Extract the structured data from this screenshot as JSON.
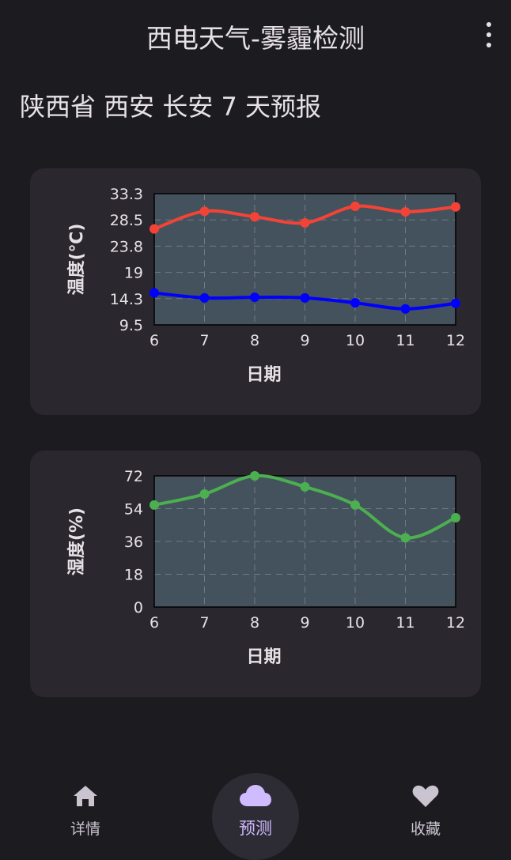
{
  "appbar": {
    "title": "西电天气-雾霾检测",
    "menu_icon": "more-vert-icon"
  },
  "heading": "陕西省 西安 长安 7 天预报",
  "chart_data": [
    {
      "type": "line",
      "ylabel": "温度(℃)",
      "xlabel": "日期",
      "x": [
        6,
        7,
        8,
        9,
        10,
        11,
        12
      ],
      "yticks": [
        "33.3",
        "28.5",
        "23.8",
        "19",
        "14.3",
        "9.5"
      ],
      "ylim": [
        9.5,
        33.3
      ],
      "grid": true,
      "series": [
        {
          "color": "#f44336",
          "values": [
            26.9,
            30.1,
            29.1,
            28.0,
            31.0,
            30.0,
            30.9
          ]
        },
        {
          "color": "#0000ff",
          "values": [
            15.3,
            14.4,
            14.5,
            14.4,
            13.5,
            12.4,
            13.4
          ]
        }
      ]
    },
    {
      "type": "line",
      "ylabel": "湿度(%)",
      "xlabel": "日期",
      "x": [
        6,
        7,
        8,
        9,
        10,
        11,
        12
      ],
      "yticks": [
        "72",
        "54",
        "36",
        "18",
        "0"
      ],
      "ylim": [
        0,
        72
      ],
      "grid": true,
      "series": [
        {
          "color": "#4caf50",
          "values": [
            56,
            62,
            72,
            66,
            56,
            38,
            49
          ]
        }
      ]
    }
  ],
  "nav": [
    {
      "label": "详情",
      "icon": "home-icon",
      "active": false
    },
    {
      "label": "预测",
      "icon": "cloud-icon",
      "active": true
    },
    {
      "label": "收藏",
      "icon": "heart-icon",
      "active": false
    }
  ]
}
